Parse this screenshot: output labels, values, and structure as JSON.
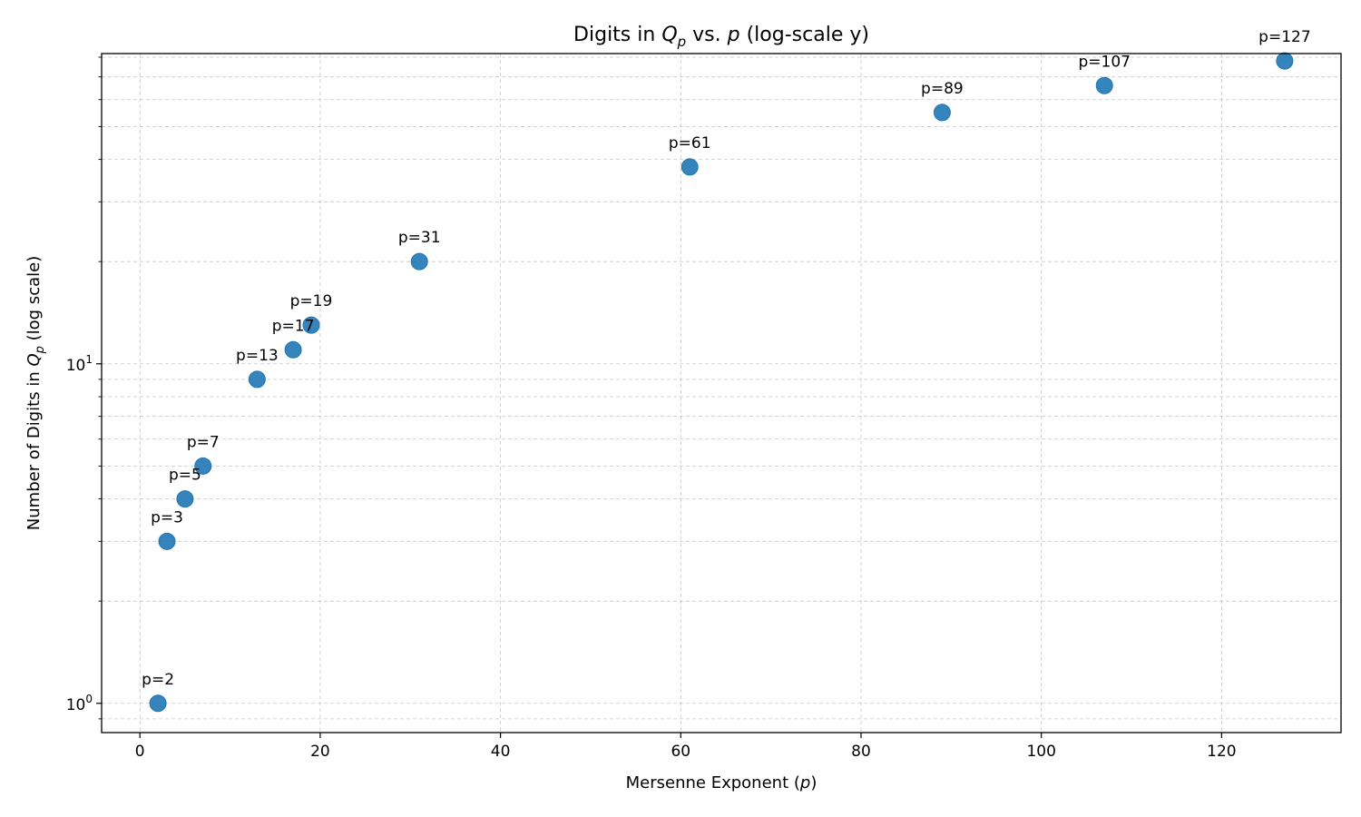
{
  "chart_data": {
    "type": "scatter",
    "title": {
      "pre": "Digits in ",
      "q": "Q",
      "q_sub": "p",
      "mid": " vs. ",
      "p": "p",
      "post": " (log-scale y)"
    },
    "xlabel": {
      "pre": "Mersenne Exponent (",
      "p": "p",
      "post": ")"
    },
    "ylabel": {
      "pre": "Number of Digits in ",
      "q": "Q",
      "q_sub": "p",
      "post": " (log scale)"
    },
    "x_scale": "linear",
    "y_scale": "log",
    "xlim": [
      -4.25,
      133.25
    ],
    "ylim": [
      0.82,
      82
    ],
    "x_ticks": [
      0,
      20,
      40,
      60,
      80,
      100,
      120
    ],
    "x_tick_labels": [
      "0",
      "20",
      "40",
      "60",
      "80",
      "100",
      "120"
    ],
    "y_ticks": [
      {
        "value": 1,
        "base": "10",
        "exp": "0"
      },
      {
        "value": 10,
        "base": "10",
        "exp": "1"
      }
    ],
    "grid": true,
    "marker_color": "#1f77b4",
    "points": [
      {
        "x": 2,
        "y": 1,
        "label": "p=2"
      },
      {
        "x": 3,
        "y": 3,
        "label": "p=3"
      },
      {
        "x": 5,
        "y": 4,
        "label": "p=5"
      },
      {
        "x": 7,
        "y": 5,
        "label": "p=7"
      },
      {
        "x": 13,
        "y": 9,
        "label": "p=13"
      },
      {
        "x": 17,
        "y": 11,
        "label": "p=17"
      },
      {
        "x": 19,
        "y": 13,
        "label": "p=19"
      },
      {
        "x": 31,
        "y": 20,
        "label": "p=31"
      },
      {
        "x": 61,
        "y": 38,
        "label": "p=61"
      },
      {
        "x": 89,
        "y": 55,
        "label": "p=89"
      },
      {
        "x": 107,
        "y": 66,
        "label": "p=107"
      },
      {
        "x": 127,
        "y": 78,
        "label": "p=127"
      }
    ]
  }
}
